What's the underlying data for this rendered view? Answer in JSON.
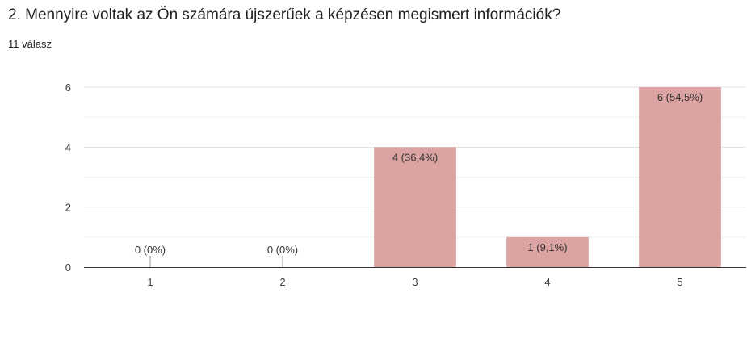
{
  "question": {
    "title": "2. Mennyire voltak az Ön számára újszerűek a képzésen megismert információk?",
    "response_count": "11 válasz"
  },
  "colors": {
    "bar": "#dba3a1",
    "axis": "#333333",
    "gridline": "#e0e0e0"
  },
  "chart_data": {
    "type": "bar",
    "title": "2. Mennyire voltak az Ön számára újszerűek a képzésen megismert információk?",
    "xlabel": "",
    "ylabel": "",
    "categories": [
      "1",
      "2",
      "3",
      "4",
      "5"
    ],
    "values": [
      0,
      0,
      4,
      1,
      6
    ],
    "data_labels": [
      "0 (0%)",
      "0 (0%)",
      "4 (36,4%)",
      "1 (9,1%)",
      "6 (54,5%)"
    ],
    "ylim": [
      0,
      6
    ],
    "yticks": [
      0,
      2,
      4,
      6
    ],
    "grid": true,
    "legend": "none"
  }
}
